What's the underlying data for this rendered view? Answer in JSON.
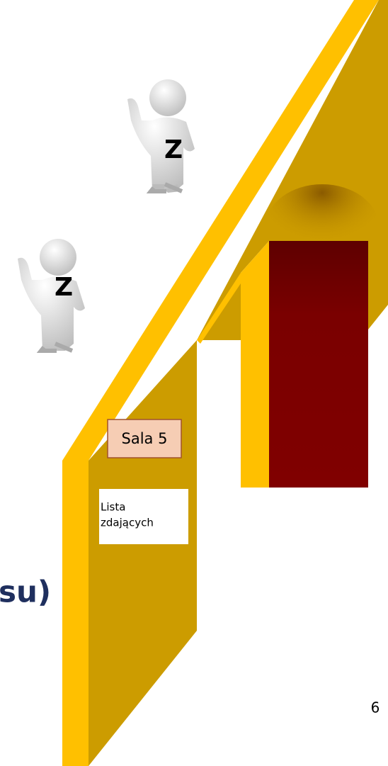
{
  "figures": [
    {
      "label": "Z"
    },
    {
      "label": "Z"
    }
  ],
  "sign": "Sala 5",
  "list": [
    "Lista",
    "zdających"
  ],
  "title_fragment": "su)",
  "page_number": "6"
}
